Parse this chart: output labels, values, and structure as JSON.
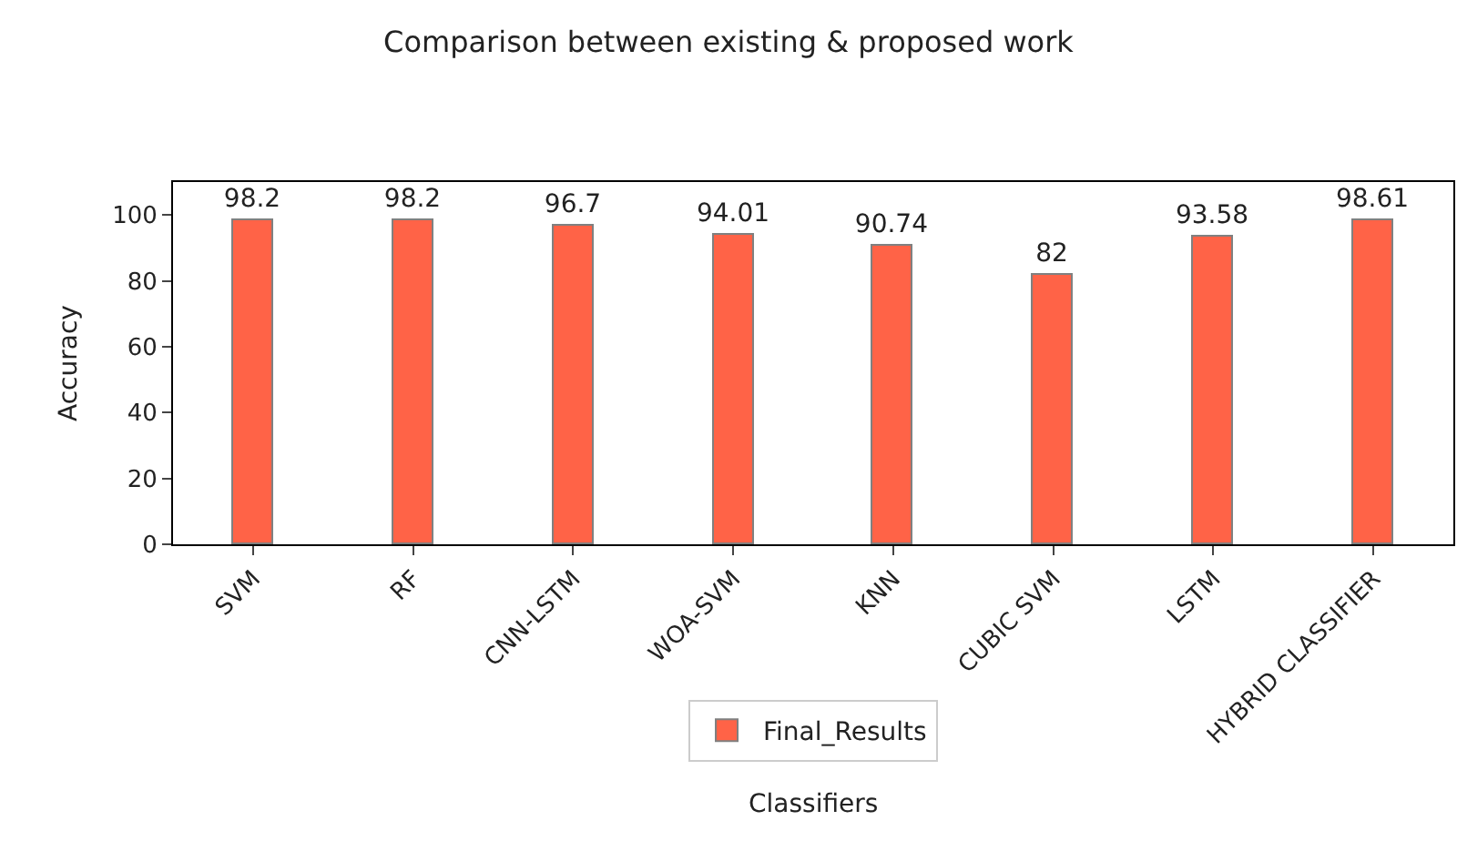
{
  "chart_data": {
    "type": "bar",
    "title": "Comparison between existing & proposed work",
    "xlabel": "Classifiers",
    "ylabel": "Accuracy",
    "categories": [
      "SVM",
      "RF",
      "CNN-LSTM",
      "WOA-SVM",
      "KNN",
      "CUBIC SVM",
      "LSTM",
      "HYBRID CLASSIFIER"
    ],
    "series": [
      {
        "name": "Final_Results",
        "color": "#ff6347",
        "values": [
          98.2,
          98.2,
          96.7,
          94.01,
          90.74,
          82,
          93.58,
          98.61
        ]
      }
    ],
    "ylim": [
      0,
      110
    ],
    "yticks": [
      0,
      20,
      40,
      60,
      80,
      100
    ],
    "data_labels": true,
    "legend": "bottom"
  }
}
